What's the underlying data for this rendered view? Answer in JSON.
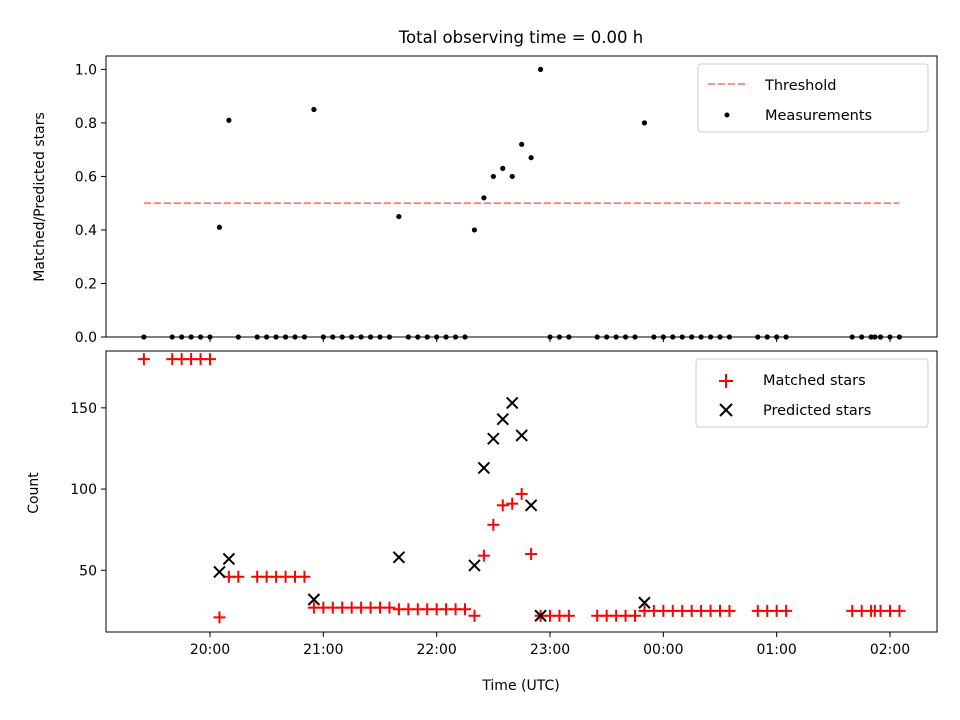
{
  "chart_data": [
    {
      "type": "scatter",
      "title": "Total observing time = 0.00 h",
      "ylabel": "Matched/Predicted stars",
      "xlabel": "",
      "ylim": [
        0,
        1.05
      ],
      "yticks": [
        0.0,
        0.2,
        0.4,
        0.6,
        0.8,
        1.0
      ],
      "ytick_labels": [
        "0.0",
        "0.2",
        "0.4",
        "0.6",
        "0.8",
        "1.0"
      ],
      "legend_position": "top-right",
      "threshold": {
        "name": "Threshold",
        "value": 0.5,
        "x_start": "19:25",
        "x_end": "02:05",
        "color": "#ff7f7f"
      },
      "series": [
        {
          "name": "Measurements",
          "color": "#000000",
          "points": [
            [
              "19:25",
              0.0
            ],
            [
              "19:40",
              0.0
            ],
            [
              "19:45",
              0.0
            ],
            [
              "19:50",
              0.0
            ],
            [
              "19:55",
              0.0
            ],
            [
              "20:00",
              0.0
            ],
            [
              "20:05",
              0.41
            ],
            [
              "20:10",
              0.81
            ],
            [
              "20:15",
              0.0
            ],
            [
              "20:25",
              0.0
            ],
            [
              "20:30",
              0.0
            ],
            [
              "20:35",
              0.0
            ],
            [
              "20:40",
              0.0
            ],
            [
              "20:45",
              0.0
            ],
            [
              "20:50",
              0.0
            ],
            [
              "20:55",
              0.85
            ],
            [
              "21:00",
              0.0
            ],
            [
              "21:05",
              0.0
            ],
            [
              "21:10",
              0.0
            ],
            [
              "21:15",
              0.0
            ],
            [
              "21:20",
              0.0
            ],
            [
              "21:25",
              0.0
            ],
            [
              "21:30",
              0.0
            ],
            [
              "21:35",
              0.0
            ],
            [
              "21:40",
              0.45
            ],
            [
              "21:45",
              0.0
            ],
            [
              "21:50",
              0.0
            ],
            [
              "21:55",
              0.0
            ],
            [
              "22:00",
              0.0
            ],
            [
              "22:05",
              0.0
            ],
            [
              "22:10",
              0.0
            ],
            [
              "22:15",
              0.0
            ],
            [
              "22:20",
              0.4
            ],
            [
              "22:25",
              0.52
            ],
            [
              "22:30",
              0.6
            ],
            [
              "22:35",
              0.63
            ],
            [
              "22:40",
              0.6
            ],
            [
              "22:45",
              0.72
            ],
            [
              "22:50",
              0.67
            ],
            [
              "22:55",
              1.0
            ],
            [
              "23:00",
              0.0
            ],
            [
              "23:05",
              0.0
            ],
            [
              "23:10",
              0.0
            ],
            [
              "23:25",
              0.0
            ],
            [
              "23:30",
              0.0
            ],
            [
              "23:35",
              0.0
            ],
            [
              "23:40",
              0.0
            ],
            [
              "23:45",
              0.0
            ],
            [
              "23:50",
              0.8
            ],
            [
              "23:55",
              0.0
            ],
            [
              "00:00",
              0.0
            ],
            [
              "00:05",
              0.0
            ],
            [
              "00:10",
              0.0
            ],
            [
              "00:15",
              0.0
            ],
            [
              "00:20",
              0.0
            ],
            [
              "00:25",
              0.0
            ],
            [
              "00:30",
              0.0
            ],
            [
              "00:35",
              0.0
            ],
            [
              "00:50",
              0.0
            ],
            [
              "00:55",
              0.0
            ],
            [
              "01:00",
              0.0
            ],
            [
              "01:05",
              0.0
            ],
            [
              "01:40",
              0.0
            ],
            [
              "01:45",
              0.0
            ],
            [
              "01:50",
              0.0
            ],
            [
              "01:52",
              0.0
            ],
            [
              "01:55",
              0.0
            ],
            [
              "02:00",
              0.0
            ],
            [
              "02:05",
              0.0
            ]
          ]
        }
      ]
    },
    {
      "type": "scatter",
      "title": "",
      "ylabel": "Count",
      "xlabel": "Time (UTC)",
      "ylim": [
        12,
        185
      ],
      "yticks": [
        50,
        100,
        150
      ],
      "ytick_labels": [
        "50",
        "100",
        "150"
      ],
      "xticks": [
        "20:00",
        "21:00",
        "22:00",
        "23:00",
        "00:00",
        "01:00",
        "02:00"
      ],
      "legend_position": "top-right",
      "series": [
        {
          "name": "Matched stars",
          "marker": "plus",
          "color": "#ff0000",
          "points": [
            [
              "19:25",
              180
            ],
            [
              "19:40",
              180
            ],
            [
              "19:45",
              180
            ],
            [
              "19:50",
              180
            ],
            [
              "19:55",
              180
            ],
            [
              "20:00",
              180
            ],
            [
              "20:05",
              21
            ],
            [
              "20:10",
              46
            ],
            [
              "20:15",
              46
            ],
            [
              "20:25",
              46
            ],
            [
              "20:30",
              46
            ],
            [
              "20:35",
              46
            ],
            [
              "20:40",
              46
            ],
            [
              "20:45",
              46
            ],
            [
              "20:50",
              46
            ],
            [
              "20:55",
              27
            ],
            [
              "21:00",
              27
            ],
            [
              "21:05",
              27
            ],
            [
              "21:10",
              27
            ],
            [
              "21:15",
              27
            ],
            [
              "21:20",
              27
            ],
            [
              "21:25",
              27
            ],
            [
              "21:30",
              27
            ],
            [
              "21:35",
              27
            ],
            [
              "21:40",
              26
            ],
            [
              "21:45",
              26
            ],
            [
              "21:50",
              26
            ],
            [
              "21:55",
              26
            ],
            [
              "22:00",
              26
            ],
            [
              "22:05",
              26
            ],
            [
              "22:10",
              26
            ],
            [
              "22:15",
              26
            ],
            [
              "22:20",
              22
            ],
            [
              "22:25",
              59
            ],
            [
              "22:30",
              78
            ],
            [
              "22:35",
              90
            ],
            [
              "22:40",
              91
            ],
            [
              "22:45",
              97
            ],
            [
              "22:50",
              60
            ],
            [
              "22:55",
              22
            ],
            [
              "23:00",
              22
            ],
            [
              "23:05",
              22
            ],
            [
              "23:10",
              22
            ],
            [
              "23:25",
              22
            ],
            [
              "23:30",
              22
            ],
            [
              "23:35",
              22
            ],
            [
              "23:40",
              22
            ],
            [
              "23:45",
              22
            ],
            [
              "23:50",
              25
            ],
            [
              "23:55",
              25
            ],
            [
              "00:00",
              25
            ],
            [
              "00:05",
              25
            ],
            [
              "00:10",
              25
            ],
            [
              "00:15",
              25
            ],
            [
              "00:20",
              25
            ],
            [
              "00:25",
              25
            ],
            [
              "00:30",
              25
            ],
            [
              "00:35",
              25
            ],
            [
              "00:50",
              25
            ],
            [
              "00:55",
              25
            ],
            [
              "01:00",
              25
            ],
            [
              "01:05",
              25
            ],
            [
              "01:40",
              25
            ],
            [
              "01:45",
              25
            ],
            [
              "01:50",
              25
            ],
            [
              "01:52",
              25
            ],
            [
              "01:55",
              25
            ],
            [
              "02:00",
              25
            ],
            [
              "02:05",
              25
            ]
          ]
        },
        {
          "name": "Predicted stars",
          "marker": "x",
          "color": "#000000",
          "points": [
            [
              "20:05",
              49
            ],
            [
              "20:10",
              57
            ],
            [
              "20:55",
              32
            ],
            [
              "21:40",
              58
            ],
            [
              "22:20",
              53
            ],
            [
              "22:25",
              113
            ],
            [
              "22:30",
              131
            ],
            [
              "22:35",
              143
            ],
            [
              "22:40",
              153
            ],
            [
              "22:45",
              133
            ],
            [
              "22:50",
              90
            ],
            [
              "22:55",
              22
            ],
            [
              "23:50",
              30
            ]
          ]
        }
      ]
    }
  ]
}
